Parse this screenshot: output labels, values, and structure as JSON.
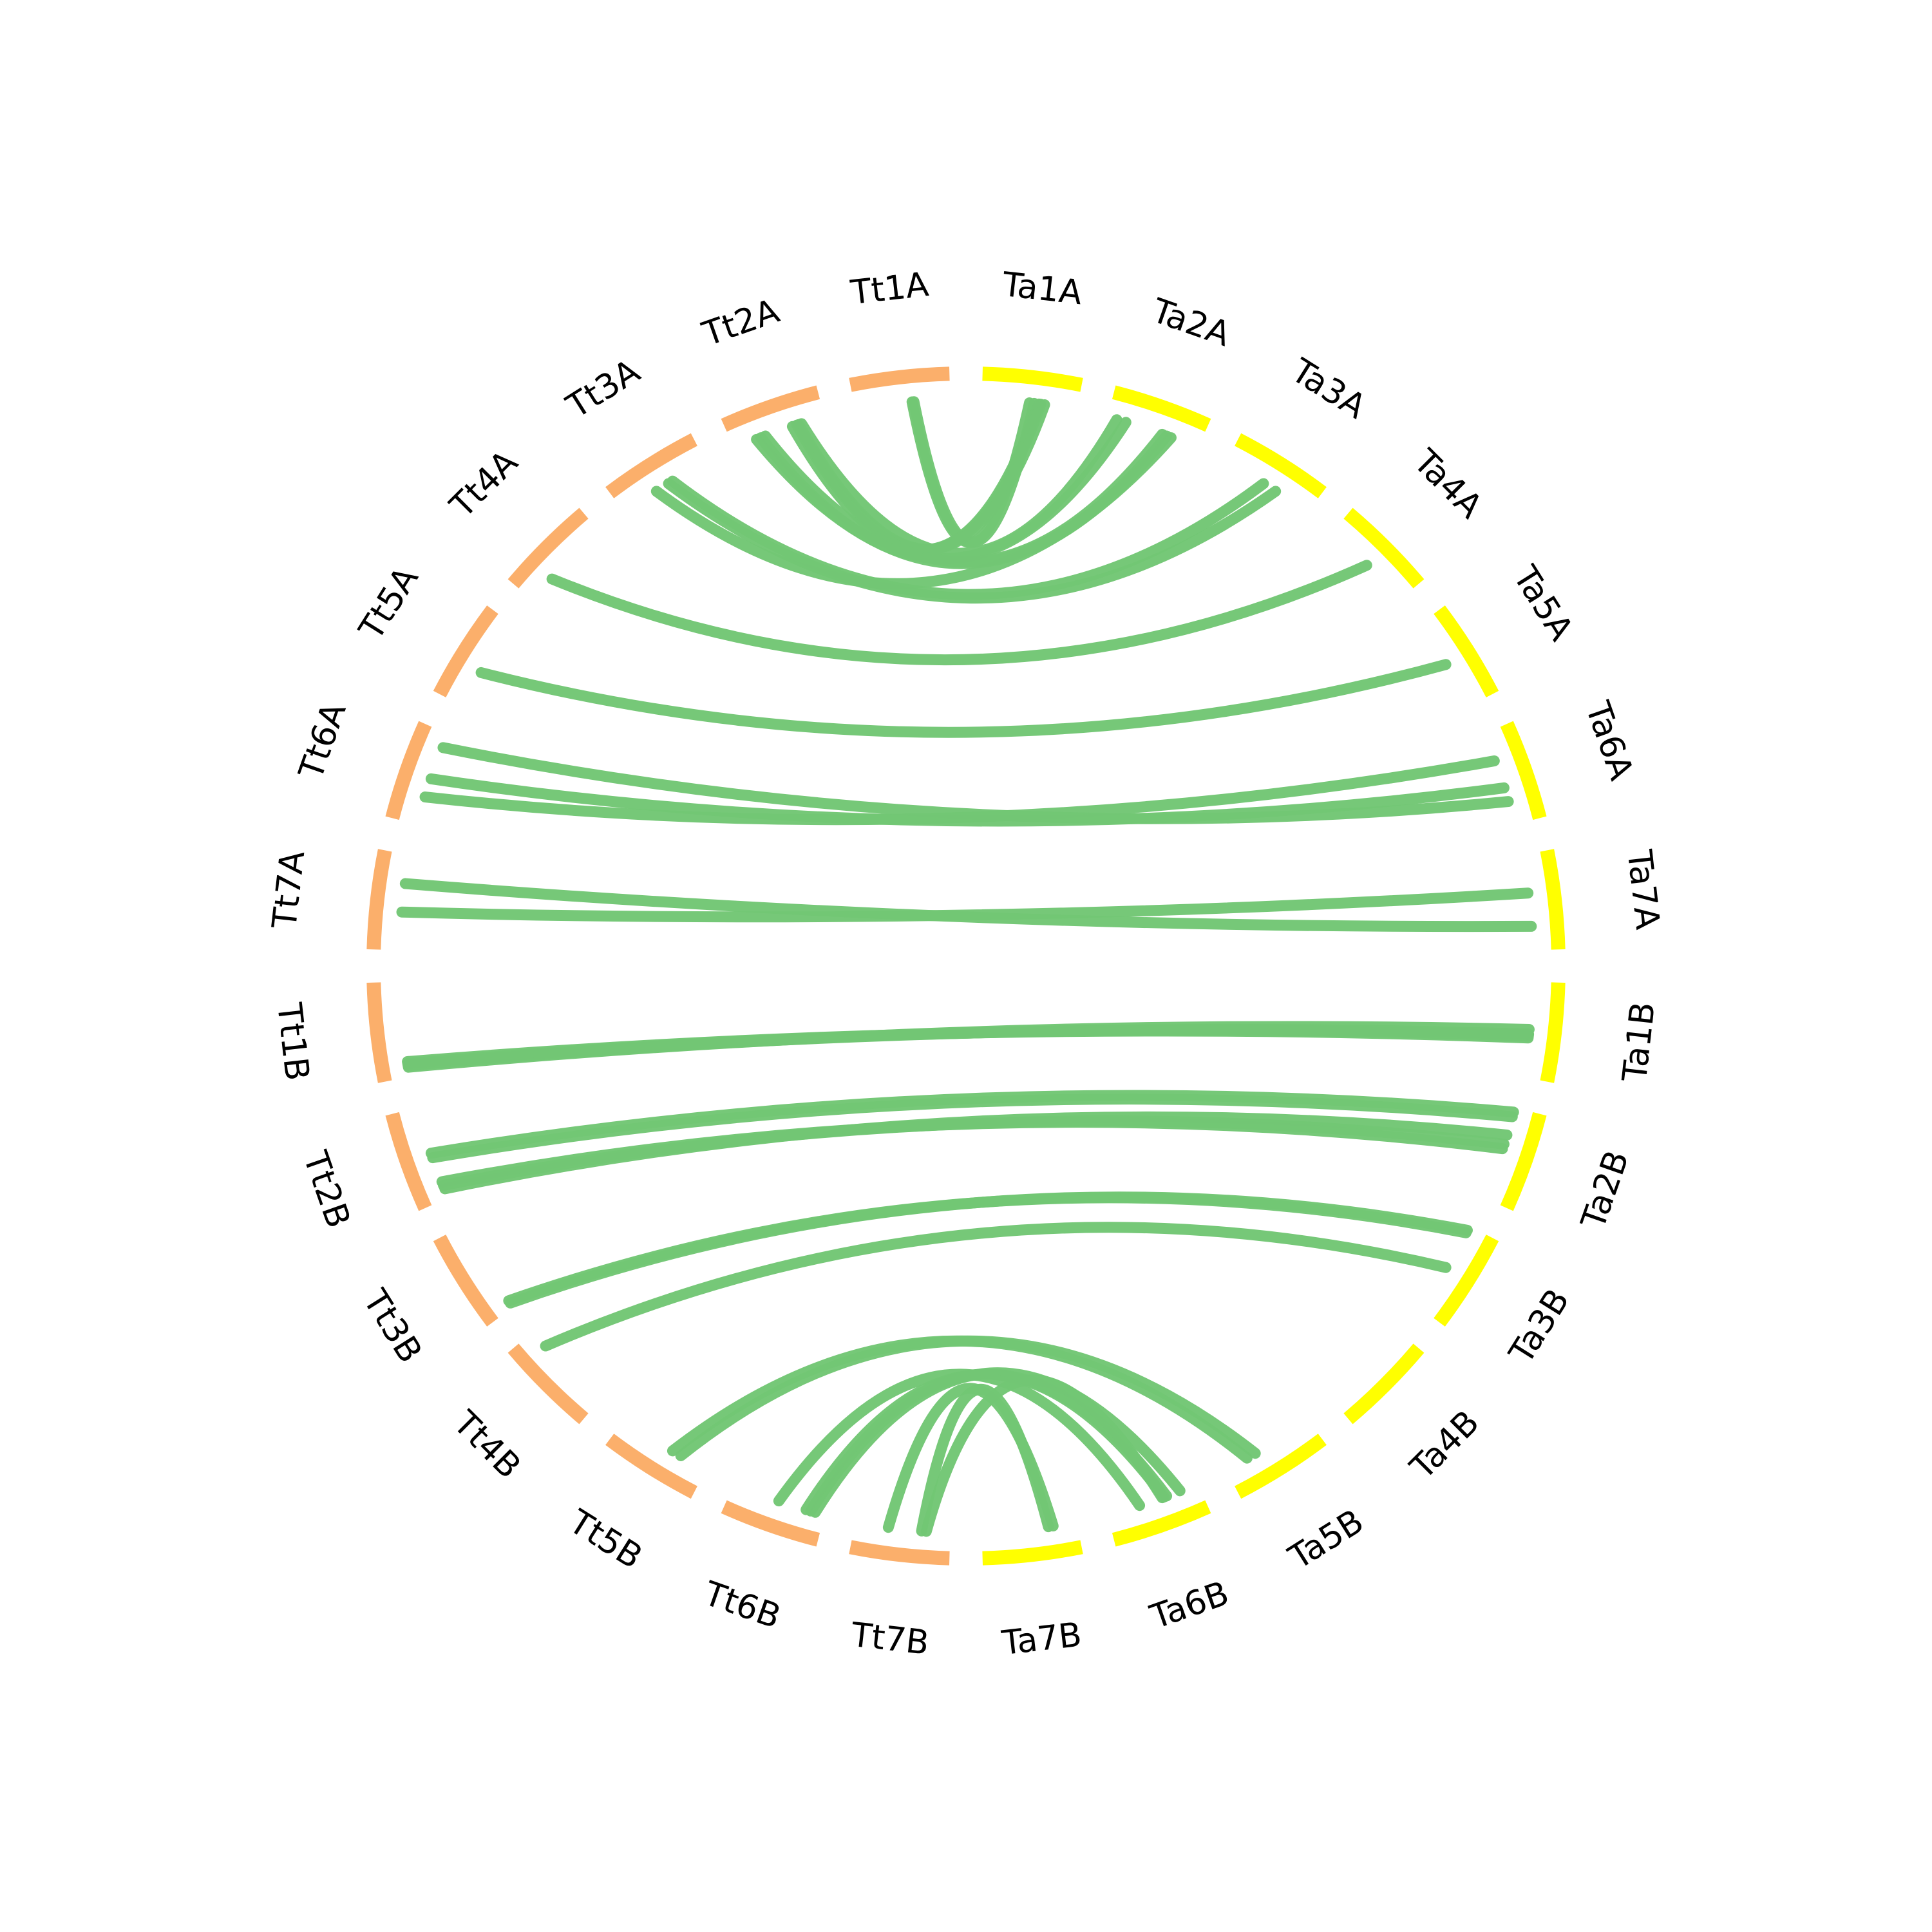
{
  "colors": {
    "tt": "#fbaf6b",
    "ta": "#ffff00",
    "link": "#72c674",
    "label": "#000000",
    "background": "#ffffff"
  },
  "chromosomes": [
    {
      "id": "Tt1A",
      "label": "Tt1A",
      "genome": "tt"
    },
    {
      "id": "Tt2A",
      "label": "Tt2A",
      "genome": "tt"
    },
    {
      "id": "Tt3A",
      "label": "Tt3A",
      "genome": "tt"
    },
    {
      "id": "Tt4A",
      "label": "Tt4A",
      "genome": "tt"
    },
    {
      "id": "Tt5A",
      "label": "Tt5A",
      "genome": "tt"
    },
    {
      "id": "Tt6A",
      "label": "Tt6A",
      "genome": "tt"
    },
    {
      "id": "Tt7A",
      "label": "Tt7A",
      "genome": "tt"
    },
    {
      "id": "Tt1B",
      "label": "Tt1B",
      "genome": "tt"
    },
    {
      "id": "Tt2B",
      "label": "Tt2B",
      "genome": "tt"
    },
    {
      "id": "Tt3B",
      "label": "Tt3B",
      "genome": "tt"
    },
    {
      "id": "Tt4B",
      "label": "Tt4B",
      "genome": "tt"
    },
    {
      "id": "Tt5B",
      "label": "Tt5B",
      "genome": "tt"
    },
    {
      "id": "Tt6B",
      "label": "Tt6B",
      "genome": "tt"
    },
    {
      "id": "Tt7B",
      "label": "Tt7B",
      "genome": "tt"
    },
    {
      "id": "Ta7B",
      "label": "Ta7B",
      "genome": "ta"
    },
    {
      "id": "Ta6B",
      "label": "Ta6B",
      "genome": "ta"
    },
    {
      "id": "Ta5B",
      "label": "Ta5B",
      "genome": "ta"
    },
    {
      "id": "Ta4B",
      "label": "Ta4B",
      "genome": "ta"
    },
    {
      "id": "Ta3B",
      "label": "Ta3B",
      "genome": "ta"
    },
    {
      "id": "Ta2B",
      "label": "Ta2B",
      "genome": "ta"
    },
    {
      "id": "Ta1B",
      "label": "Ta1B",
      "genome": "ta"
    },
    {
      "id": "Ta7A",
      "label": "Ta7A",
      "genome": "ta"
    },
    {
      "id": "Ta6A",
      "label": "Ta6A",
      "genome": "ta"
    },
    {
      "id": "Ta5A",
      "label": "Ta5A",
      "genome": "ta"
    },
    {
      "id": "Ta4A",
      "label": "Ta4A",
      "genome": "ta"
    },
    {
      "id": "Ta3A",
      "label": "Ta3A",
      "genome": "ta"
    },
    {
      "id": "Ta2A",
      "label": "Ta2A",
      "genome": "ta"
    },
    {
      "id": "Ta1A",
      "label": "Ta1A",
      "genome": "ta"
    }
  ],
  "links": [
    {
      "from": "Tt1A",
      "from_pos": 0.6,
      "to": "Ta1A",
      "to_pos": 0.5
    },
    {
      "from": "Tt1A",
      "from_pos": 0.62,
      "to": "Ta1A",
      "to_pos": 0.55
    },
    {
      "from": "Tt2A",
      "from_pos": 0.65,
      "to": "Ta1A",
      "to_pos": 0.6
    },
    {
      "from": "Tt2A",
      "from_pos": 0.7,
      "to": "Ta1A",
      "to_pos": 0.62
    },
    {
      "from": "Tt2A",
      "from_pos": 0.72,
      "to": "Ta1A",
      "to_pos": 0.66
    },
    {
      "from": "Tt2A",
      "from_pos": 0.75,
      "to": "Ta2A",
      "to_pos": 0.1
    },
    {
      "from": "Tt2A",
      "from_pos": 0.3,
      "to": "Ta2A",
      "to_pos": 0.2
    },
    {
      "from": "Tt2A",
      "from_pos": 0.35,
      "to": "Ta2A",
      "to_pos": 0.6
    },
    {
      "from": "Tt2A",
      "from_pos": 0.25,
      "to": "Ta2A",
      "to_pos": 0.65
    },
    {
      "from": "Tt3A",
      "from_pos": 0.4,
      "to": "Ta2A",
      "to_pos": 0.7
    },
    {
      "from": "Tt3A",
      "from_pos": 0.6,
      "to": "Ta3A",
      "to_pos": 0.45
    },
    {
      "from": "Tt3A",
      "from_pos": 0.55,
      "to": "Ta3A",
      "to_pos": 0.6
    },
    {
      "from": "Tt4A",
      "from_pos": 0.3,
      "to": "Ta4A",
      "to_pos": 0.5
    },
    {
      "from": "Tt5A",
      "from_pos": 0.4,
      "to": "Ta5A",
      "to_pos": 0.5
    },
    {
      "from": "Tt6A",
      "from_pos": 0.3,
      "to": "Ta6A",
      "to_pos": 0.3
    },
    {
      "from": "Tt6A",
      "from_pos": 0.5,
      "to": "Ta6A",
      "to_pos": 0.6
    },
    {
      "from": "Tt6A",
      "from_pos": 0.85,
      "to": "Ta6A",
      "to_pos": 0.75
    },
    {
      "from": "Tt7A",
      "from_pos": 0.4,
      "to": "Ta7A",
      "to_pos": 0.4
    },
    {
      "from": "Tt7A",
      "from_pos": 0.7,
      "to": "Ta7A",
      "to_pos": 0.75
    },
    {
      "from": "Tt1B",
      "from_pos": 0.1,
      "to": "Ta1B",
      "to_pos": 0.5
    },
    {
      "from": "Tt1B",
      "from_pos": 0.12,
      "to": "Ta1B",
      "to_pos": 0.55
    },
    {
      "from": "Tt1B",
      "from_pos": 0.14,
      "to": "Ta1B",
      "to_pos": 0.57
    },
    {
      "from": "Tt1B",
      "from_pos": 0.16,
      "to": "Ta1B",
      "to_pos": 0.59
    },
    {
      "from": "Tt2B",
      "from_pos": 0.1,
      "to": "Ta2B",
      "to_pos": 0.3
    },
    {
      "from": "Tt2B",
      "from_pos": 0.14,
      "to": "Ta2B",
      "to_pos": 0.4
    },
    {
      "from": "Tt2B",
      "from_pos": 0.18,
      "to": "Ta2B",
      "to_pos": 0.45
    },
    {
      "from": "Tt2B",
      "from_pos": 0.45,
      "to": "Ta2B",
      "to_pos": 0.1
    },
    {
      "from": "Tt2B",
      "from_pos": 0.5,
      "to": "Ta2B",
      "to_pos": 0.05
    },
    {
      "from": "Tt3B",
      "from_pos": 0.05,
      "to": "Ta3B",
      "to_pos": 0.05
    },
    {
      "from": "Tt3B",
      "from_pos": 0.08,
      "to": "Ta3B",
      "to_pos": 0.08
    },
    {
      "from": "Tt4B",
      "from_pos": 0.8,
      "to": "Ta3B",
      "to_pos": 0.5
    },
    {
      "from": "Tt5B",
      "from_pos": 0.3,
      "to": "Ta5B",
      "to_pos": 0.65
    },
    {
      "from": "Tt5B",
      "from_pos": 0.4,
      "to": "Ta5B",
      "to_pos": 0.75
    },
    {
      "from": "Tt6B",
      "from_pos": 0.1,
      "to": "Ta6B",
      "to_pos": 0.2
    },
    {
      "from": "Tt6B",
      "from_pos": 0.15,
      "to": "Ta6B",
      "to_pos": 0.35
    },
    {
      "from": "Tt6B",
      "from_pos": 0.2,
      "to": "Ta6B",
      "to_pos": 0.38
    },
    {
      "from": "Tt6B",
      "from_pos": 0.5,
      "to": "Ta6B",
      "to_pos": 0.65
    },
    {
      "from": "Tt7B",
      "from_pos": 0.3,
      "to": "Ta7B",
      "to_pos": 0.3
    },
    {
      "from": "Tt7B",
      "from_pos": 0.65,
      "to": "Ta7B",
      "to_pos": 0.25
    },
    {
      "from": "Tt7B",
      "from_pos": 0.25,
      "to": "Ta6B",
      "to_pos": 0.4
    }
  ]
}
